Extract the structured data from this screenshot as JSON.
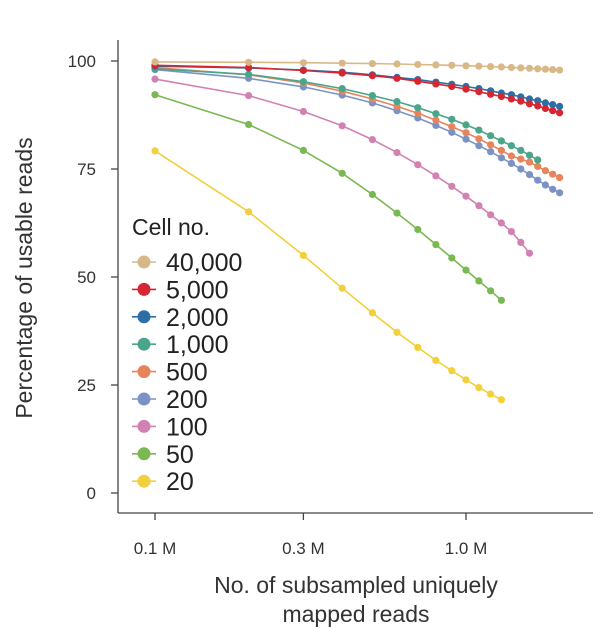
{
  "chart_data": {
    "type": "line",
    "x_scale": "log",
    "xlabel_lines": [
      "No. of subsampled uniquely",
      "mapped reads"
    ],
    "ylabel": "Percentage of usable reads",
    "xticks": [
      {
        "value": 0.1,
        "label": "0.1 M"
      },
      {
        "value": 0.3,
        "label": "0.3 M"
      },
      {
        "value": 1.0,
        "label": "1.0 M"
      }
    ],
    "yticks": [
      0,
      25,
      50,
      75,
      100
    ],
    "ylim": [
      0,
      100
    ],
    "legend_title": "Cell no.",
    "legend_position": "center-left",
    "series": [
      {
        "name": "40,000",
        "color": "#d9b888",
        "x": [
          0.1,
          0.2,
          0.3,
          0.4,
          0.5,
          0.6,
          0.7,
          0.8,
          0.9,
          1.0,
          1.1,
          1.2,
          1.3,
          1.4,
          1.5,
          1.6,
          1.7,
          1.8,
          1.9,
          2.0
        ],
        "y": [
          99.8,
          99.7,
          99.6,
          99.5,
          99.4,
          99.3,
          99.2,
          99.1,
          99.0,
          98.9,
          98.8,
          98.7,
          98.6,
          98.5,
          98.4,
          98.3,
          98.2,
          98.1,
          98.0,
          97.9
        ]
      },
      {
        "name": "5,000",
        "color": "#d62631",
        "x": [
          0.1,
          0.2,
          0.3,
          0.4,
          0.5,
          0.6,
          0.7,
          0.8,
          0.9,
          1.0,
          1.1,
          1.2,
          1.3,
          1.4,
          1.5,
          1.6,
          1.7,
          1.8,
          1.9,
          2.0
        ],
        "y": [
          99.0,
          98.5,
          97.8,
          97.2,
          96.6,
          96.0,
          95.3,
          94.7,
          94.1,
          93.5,
          92.9,
          92.3,
          91.8,
          91.2,
          90.7,
          90.1,
          89.6,
          89.0,
          88.5,
          88.0
        ]
      },
      {
        "name": "2,000",
        "color": "#2c6fa6",
        "x": [
          0.1,
          0.2,
          0.3,
          0.4,
          0.5,
          0.6,
          0.7,
          0.8,
          0.9,
          1.0,
          1.1,
          1.2,
          1.3,
          1.4,
          1.5,
          1.6,
          1.7,
          1.8,
          1.9,
          2.0
        ],
        "y": [
          98.8,
          98.4,
          97.9,
          97.4,
          96.8,
          96.2,
          95.7,
          95.1,
          94.6,
          94.1,
          93.6,
          93.1,
          92.6,
          92.2,
          91.7,
          91.2,
          90.8,
          90.3,
          89.9,
          89.5
        ]
      },
      {
        "name": "1,000",
        "color": "#4aa58a",
        "x": [
          0.1,
          0.2,
          0.3,
          0.4,
          0.5,
          0.6,
          0.7,
          0.8,
          0.9,
          1.0,
          1.1,
          1.2,
          1.3,
          1.4,
          1.5,
          1.6,
          1.7
        ],
        "y": [
          98.2,
          96.9,
          95.2,
          93.6,
          92.0,
          90.6,
          89.2,
          87.8,
          86.5,
          85.2,
          84.0,
          82.7,
          81.5,
          80.4,
          79.3,
          78.2,
          77.1
        ]
      },
      {
        "name": "500",
        "color": "#e8845c",
        "x": [
          0.1,
          0.2,
          0.3,
          0.4,
          0.5,
          0.6,
          0.7,
          0.8,
          0.9,
          1.0,
          1.1,
          1.2,
          1.3,
          1.4,
          1.5,
          1.6,
          1.7,
          1.8,
          1.9,
          2.0
        ],
        "y": [
          98.5,
          96.8,
          94.9,
          93.0,
          91.2,
          89.5,
          87.9,
          86.3,
          84.8,
          83.4,
          82.0,
          80.6,
          79.3,
          78.0,
          77.3,
          76.6,
          75.6,
          74.6,
          73.8,
          73.0
        ]
      },
      {
        "name": "200",
        "color": "#7b93c4",
        "x": [
          0.1,
          0.2,
          0.3,
          0.4,
          0.5,
          0.6,
          0.7,
          0.8,
          0.9,
          1.0,
          1.1,
          1.2,
          1.3,
          1.4,
          1.5,
          1.6,
          1.7,
          1.8,
          1.9,
          2.0
        ],
        "y": [
          98.0,
          96.0,
          94.0,
          92.1,
          90.3,
          88.5,
          86.8,
          85.1,
          83.5,
          81.9,
          80.4,
          79.0,
          77.6,
          76.3,
          75.0,
          73.7,
          72.4,
          71.3,
          70.3,
          69.5
        ]
      },
      {
        "name": "100",
        "color": "#d282b2",
        "x": [
          0.1,
          0.2,
          0.3,
          0.4,
          0.5,
          0.6,
          0.7,
          0.8,
          0.9,
          1.0,
          1.1,
          1.2,
          1.3,
          1.4,
          1.5,
          1.6
        ],
        "y": [
          95.8,
          92.0,
          88.3,
          85.0,
          81.8,
          78.8,
          76.0,
          73.4,
          71.0,
          68.7,
          66.5,
          64.4,
          62.5,
          60.5,
          58.0,
          55.5
        ]
      },
      {
        "name": "50",
        "color": "#7ab852",
        "x": [
          0.1,
          0.2,
          0.3,
          0.4,
          0.5,
          0.6,
          0.7,
          0.8,
          0.9,
          1.0,
          1.1,
          1.2,
          1.3
        ],
        "y": [
          92.2,
          85.3,
          79.3,
          74.0,
          69.1,
          64.8,
          61.0,
          57.5,
          54.4,
          51.6,
          49.1,
          46.8,
          44.6
        ]
      },
      {
        "name": "20",
        "color": "#f2cf3c",
        "x": [
          0.1,
          0.2,
          0.3,
          0.4,
          0.5,
          0.6,
          0.7,
          0.8,
          0.9,
          1.0,
          1.1,
          1.2,
          1.3
        ],
        "y": [
          79.2,
          65.1,
          55.0,
          47.4,
          41.7,
          37.2,
          33.7,
          30.7,
          28.3,
          26.2,
          24.4,
          22.9,
          21.6
        ]
      }
    ]
  }
}
